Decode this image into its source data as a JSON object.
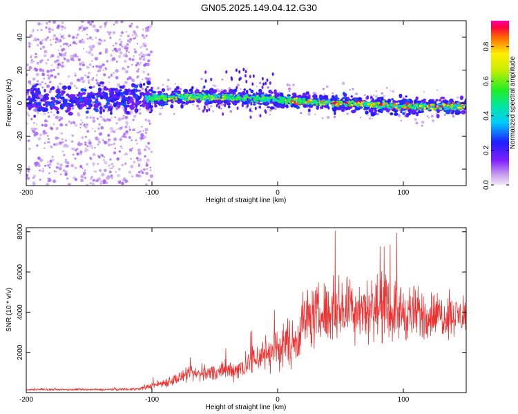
{
  "title": "GN05.2025.149.04.12.G30",
  "chart_data": [
    {
      "type": "heatmap",
      "xlabel": "Height of straight line (km)",
      "ylabel": "Frequency (Hz)",
      "xlim": [
        -200,
        150
      ],
      "ylim": [
        -50,
        50
      ],
      "xticks": [
        -200,
        -100,
        0,
        100
      ],
      "yticks": [
        -40,
        -20,
        0,
        20,
        40
      ],
      "colorbar": {
        "label": "Normalized spectral amplitude",
        "range": [
          0,
          0.95
        ],
        "ticks": [
          0.0,
          0.2,
          0.4,
          0.6,
          0.8
        ],
        "colormap": "rainbow"
      },
      "description_series": {
        "centerline": [
          {
            "x": -200,
            "y": 2
          },
          {
            "x": -150,
            "y": 2
          },
          {
            "x": -100,
            "y": 3
          },
          {
            "x": -60,
            "y": 4
          },
          {
            "x": -20,
            "y": 3
          },
          {
            "x": 0,
            "y": 2
          },
          {
            "x": 50,
            "y": 0
          },
          {
            "x": 100,
            "y": -2
          },
          {
            "x": 150,
            "y": -2
          }
        ]
      }
    },
    {
      "type": "line",
      "xlabel": "Height of straight line (km)",
      "ylabel": "SNR (10 * v/v)",
      "xlim": [
        -200,
        150
      ],
      "ylim": [
        0,
        8200
      ],
      "xticks": [
        -200,
        -100,
        0,
        100
      ],
      "yticks": [
        2000,
        4000,
        6000,
        8000
      ],
      "color": "#ee3333",
      "envelope": [
        {
          "x": -200,
          "mean": 150,
          "spread": 60
        },
        {
          "x": -140,
          "mean": 150,
          "spread": 80
        },
        {
          "x": -110,
          "mean": 180,
          "spread": 120
        },
        {
          "x": -90,
          "mean": 500,
          "spread": 400
        },
        {
          "x": -70,
          "mean": 900,
          "spread": 600
        },
        {
          "x": -50,
          "mean": 1000,
          "spread": 700
        },
        {
          "x": -30,
          "mean": 1200,
          "spread": 900
        },
        {
          "x": -15,
          "mean": 1800,
          "spread": 1400
        },
        {
          "x": 0,
          "mean": 2200,
          "spread": 1800
        },
        {
          "x": 15,
          "mean": 2600,
          "spread": 2000
        },
        {
          "x": 20,
          "mean": 3600,
          "spread": 2400
        },
        {
          "x": 50,
          "mean": 4200,
          "spread": 2600
        },
        {
          "x": 80,
          "mean": 4200,
          "spread": 2600
        },
        {
          "x": 110,
          "mean": 3900,
          "spread": 2200
        },
        {
          "x": 150,
          "mean": 3800,
          "spread": 1400
        }
      ]
    }
  ]
}
